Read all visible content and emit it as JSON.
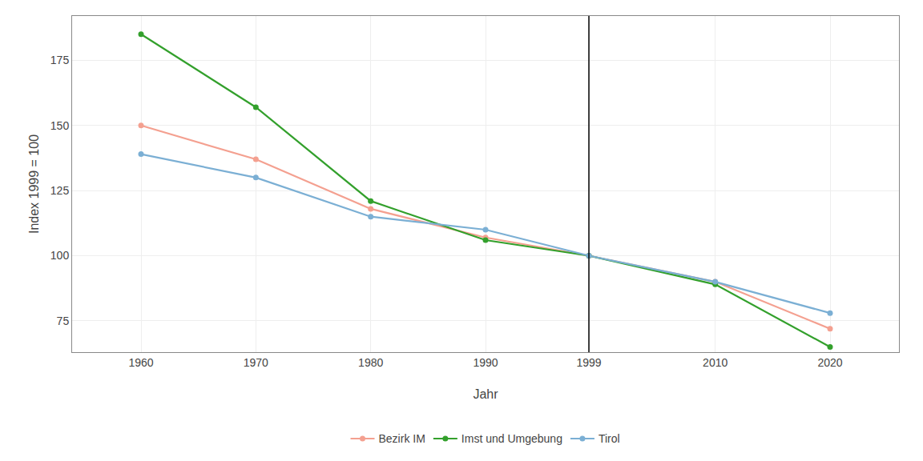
{
  "chart_data": {
    "type": "line",
    "x": [
      1960,
      1970,
      1980,
      1990,
      1999,
      2010,
      2020
    ],
    "series": [
      {
        "name": "Bezirk IM",
        "color": "#F4A090",
        "values": [
          150,
          137,
          118,
          107,
          100,
          90,
          72
        ]
      },
      {
        "name": "Imst und Umgebung",
        "color": "#33A02C",
        "values": [
          185,
          157,
          121,
          106,
          100,
          89,
          65
        ]
      },
      {
        "name": "Tirol",
        "color": "#7BAFD4",
        "values": [
          139,
          130,
          115,
          110,
          100,
          90,
          78
        ]
      }
    ],
    "vline": 1999,
    "x_label": "Jahr",
    "y_label": "Index 1999 = 100",
    "xlim": [
      1954,
      2026
    ],
    "ylim": [
      63,
      192
    ],
    "xticks": [
      1960,
      1970,
      1980,
      1990,
      1999,
      2010,
      2020
    ],
    "yticks": [
      75,
      100,
      125,
      150,
      175
    ],
    "grid": true,
    "legend": "bottom",
    "marker": "circle",
    "line_style": "solid"
  }
}
